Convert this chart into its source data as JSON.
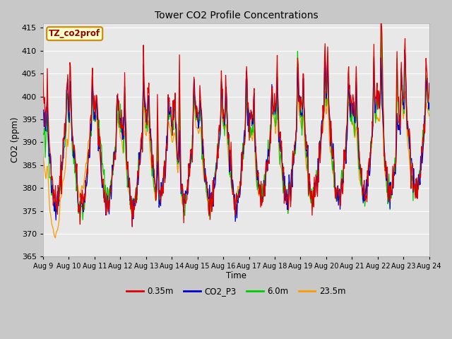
{
  "title": "Tower CO2 Profile Concentrations",
  "xlabel": "Time",
  "ylabel": "CO2 (ppm)",
  "ylim": [
    365,
    416
  ],
  "yticks": [
    365,
    370,
    375,
    380,
    385,
    390,
    395,
    400,
    405,
    410,
    415
  ],
  "n_days": 15,
  "date_start": 9,
  "fig_bg_color": "#c8c8c8",
  "plot_bg_color": "#e8e8e8",
  "legend_label": "TZ_co2prof",
  "legend_box_color": "#ffffcc",
  "legend_box_edge": "#cc8800",
  "series": {
    "0.35m": {
      "color": "#dd0000",
      "lw": 0.9
    },
    "CO2_P3": {
      "color": "#0000cc",
      "lw": 0.9
    },
    "6.0m": {
      "color": "#00cc00",
      "lw": 0.9
    },
    "23.5m": {
      "color": "#ff9900",
      "lw": 0.9
    }
  },
  "legend_entries": [
    {
      "label": "0.35m",
      "color": "#dd0000"
    },
    {
      "label": "CO2_P3",
      "color": "#0000cc"
    },
    {
      "label": "6.0m",
      "color": "#00cc00"
    },
    {
      "label": "23.5m",
      "color": "#ff9900"
    }
  ]
}
